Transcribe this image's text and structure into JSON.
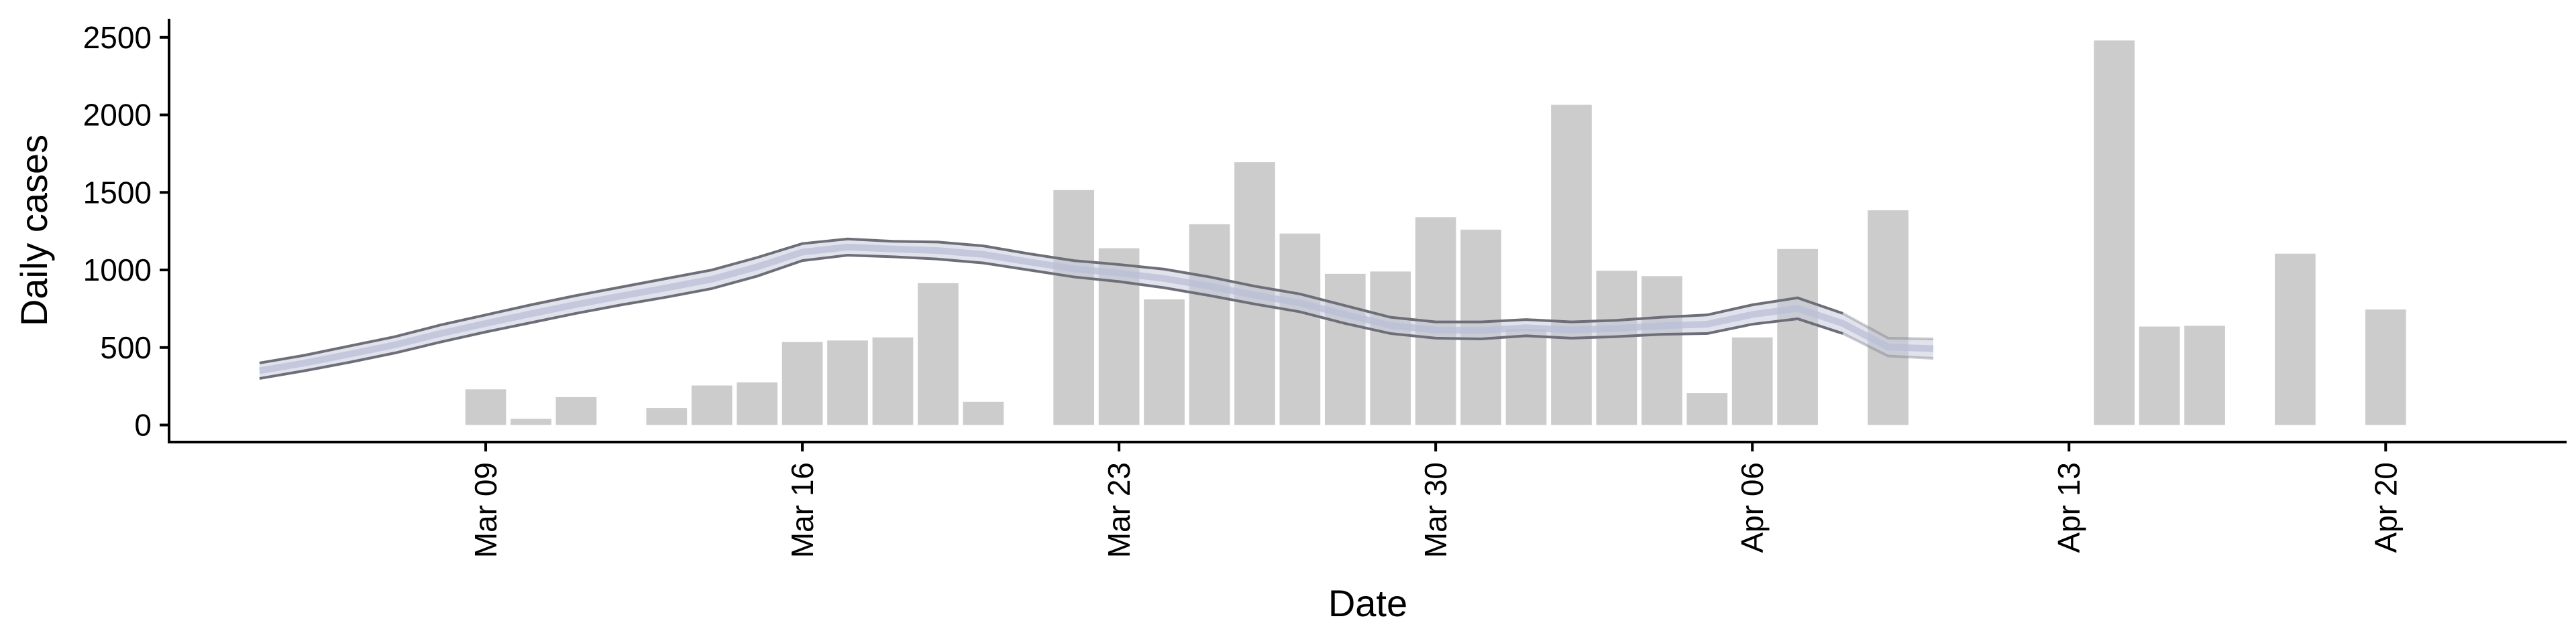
{
  "chart_data": {
    "type": "bar",
    "xlabel": "Date",
    "ylabel": "Daily cases",
    "ylim": [
      -110,
      2620
    ],
    "xlim": [
      "2020-03-02",
      "2020-04-24"
    ],
    "y_ticks": [
      0,
      500,
      1000,
      1500,
      2000,
      2500
    ],
    "x_ticks": [
      {
        "date": "2020-03-09",
        "label": "Mar 09"
      },
      {
        "date": "2020-03-16",
        "label": "Mar 16"
      },
      {
        "date": "2020-03-23",
        "label": "Mar 23"
      },
      {
        "date": "2020-03-30",
        "label": "Mar 30"
      },
      {
        "date": "2020-04-06",
        "label": "Apr 06"
      },
      {
        "date": "2020-04-13",
        "label": "Apr 13"
      },
      {
        "date": "2020-04-20",
        "label": "Apr 20"
      }
    ],
    "grid": false,
    "legend": "none",
    "bar_color": "#cccccc",
    "band_fill": "#c7cadc",
    "band_edge": "#6e6e78",
    "bars": [
      {
        "date": "2020-03-09",
        "value": 230
      },
      {
        "date": "2020-03-10",
        "value": 40
      },
      {
        "date": "2020-03-11",
        "value": 180
      },
      {
        "date": "2020-03-13",
        "value": 110
      },
      {
        "date": "2020-03-14",
        "value": 255
      },
      {
        "date": "2020-03-15",
        "value": 275
      },
      {
        "date": "2020-03-16",
        "value": 535
      },
      {
        "date": "2020-03-17",
        "value": 545
      },
      {
        "date": "2020-03-18",
        "value": 565
      },
      {
        "date": "2020-03-19",
        "value": 915
      },
      {
        "date": "2020-03-20",
        "value": 150
      },
      {
        "date": "2020-03-22",
        "value": 1515
      },
      {
        "date": "2020-03-23",
        "value": 1140
      },
      {
        "date": "2020-03-24",
        "value": 810
      },
      {
        "date": "2020-03-25",
        "value": 1295
      },
      {
        "date": "2020-03-26",
        "value": 1695
      },
      {
        "date": "2020-03-27",
        "value": 1235
      },
      {
        "date": "2020-03-28",
        "value": 975
      },
      {
        "date": "2020-03-29",
        "value": 990
      },
      {
        "date": "2020-03-30",
        "value": 1340
      },
      {
        "date": "2020-03-31",
        "value": 1260
      },
      {
        "date": "2020-04-01",
        "value": 620
      },
      {
        "date": "2020-04-02",
        "value": 2065
      },
      {
        "date": "2020-04-03",
        "value": 995
      },
      {
        "date": "2020-04-04",
        "value": 960
      },
      {
        "date": "2020-04-05",
        "value": 205
      },
      {
        "date": "2020-04-06",
        "value": 565
      },
      {
        "date": "2020-04-07",
        "value": 1135
      },
      {
        "date": "2020-04-09",
        "value": 1385
      },
      {
        "date": "2020-04-14",
        "value": 2480
      },
      {
        "date": "2020-04-15",
        "value": 635
      },
      {
        "date": "2020-04-16",
        "value": 640
      },
      {
        "date": "2020-04-18",
        "value": 1105
      },
      {
        "date": "2020-04-20",
        "value": 745
      }
    ],
    "band": [
      {
        "date": "2020-03-04",
        "lower": 300,
        "upper": 400
      },
      {
        "date": "2020-03-05",
        "lower": 350,
        "upper": 450
      },
      {
        "date": "2020-03-06",
        "lower": 405,
        "upper": 510
      },
      {
        "date": "2020-03-07",
        "lower": 465,
        "upper": 570
      },
      {
        "date": "2020-03-08",
        "lower": 535,
        "upper": 645
      },
      {
        "date": "2020-03-09",
        "lower": 600,
        "upper": 710
      },
      {
        "date": "2020-03-10",
        "lower": 660,
        "upper": 775
      },
      {
        "date": "2020-03-11",
        "lower": 720,
        "upper": 835
      },
      {
        "date": "2020-03-12",
        "lower": 775,
        "upper": 890
      },
      {
        "date": "2020-03-13",
        "lower": 825,
        "upper": 945
      },
      {
        "date": "2020-03-14",
        "lower": 880,
        "upper": 1000
      },
      {
        "date": "2020-03-15",
        "lower": 960,
        "upper": 1080
      },
      {
        "date": "2020-03-16",
        "lower": 1060,
        "upper": 1170
      },
      {
        "date": "2020-03-17",
        "lower": 1095,
        "upper": 1200
      },
      {
        "date": "2020-03-18",
        "lower": 1085,
        "upper": 1185
      },
      {
        "date": "2020-03-19",
        "lower": 1070,
        "upper": 1180
      },
      {
        "date": "2020-03-20",
        "lower": 1045,
        "upper": 1155
      },
      {
        "date": "2020-03-21",
        "lower": 1000,
        "upper": 1105
      },
      {
        "date": "2020-03-22",
        "lower": 955,
        "upper": 1060
      },
      {
        "date": "2020-03-23",
        "lower": 925,
        "upper": 1035
      },
      {
        "date": "2020-03-24",
        "lower": 885,
        "upper": 1005
      },
      {
        "date": "2020-03-25",
        "lower": 835,
        "upper": 955
      },
      {
        "date": "2020-03-26",
        "lower": 780,
        "upper": 895
      },
      {
        "date": "2020-03-27",
        "lower": 730,
        "upper": 845
      },
      {
        "date": "2020-03-28",
        "lower": 655,
        "upper": 770
      },
      {
        "date": "2020-03-29",
        "lower": 590,
        "upper": 695
      },
      {
        "date": "2020-03-30",
        "lower": 560,
        "upper": 665
      },
      {
        "date": "2020-03-31",
        "lower": 555,
        "upper": 665
      },
      {
        "date": "2020-04-01",
        "lower": 575,
        "upper": 680
      },
      {
        "date": "2020-04-02",
        "lower": 560,
        "upper": 665
      },
      {
        "date": "2020-04-03",
        "lower": 570,
        "upper": 675
      },
      {
        "date": "2020-04-04",
        "lower": 585,
        "upper": 695
      },
      {
        "date": "2020-04-05",
        "lower": 590,
        "upper": 710
      },
      {
        "date": "2020-04-06",
        "lower": 650,
        "upper": 775
      },
      {
        "date": "2020-04-07",
        "lower": 685,
        "upper": 820
      },
      {
        "date": "2020-04-08",
        "lower": 590,
        "upper": 720
      },
      {
        "date": "2020-04-09",
        "lower": 445,
        "upper": 560
      },
      {
        "date": "2020-04-10",
        "lower": 430,
        "upper": 555
      }
    ]
  }
}
